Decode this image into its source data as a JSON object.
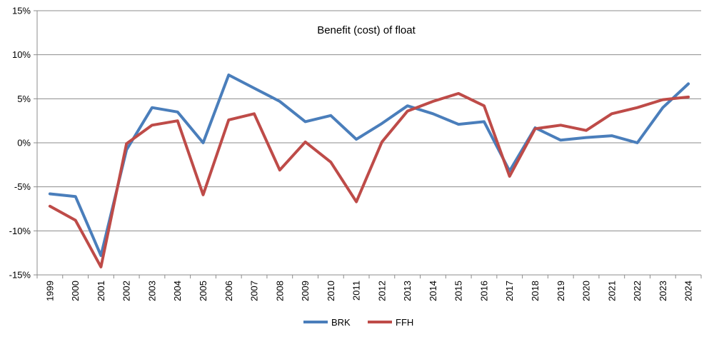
{
  "chart_data": {
    "type": "line",
    "title": "Benefit (cost) of float",
    "xlabel": "",
    "ylabel": "",
    "categories": [
      "1999",
      "2000",
      "2001",
      "2002",
      "2003",
      "2004",
      "2005",
      "2006",
      "2007",
      "2008",
      "2009",
      "2010",
      "2011",
      "2012",
      "2013",
      "2014",
      "2015",
      "2016",
      "2017",
      "2018",
      "2019",
      "2020",
      "2021",
      "2022",
      "2023",
      "2024"
    ],
    "ylim": [
      -15,
      15
    ],
    "yticks": [
      -15,
      -10,
      -5,
      0,
      5,
      10,
      15
    ],
    "ytick_labels": [
      "-15%",
      "-10%",
      "-5%",
      "0%",
      "5%",
      "10%",
      "15%"
    ],
    "grid": "horizontal",
    "legend_position": "bottom",
    "series": [
      {
        "name": "BRK",
        "color": "#4A7EBB",
        "values": [
          -5.8,
          -6.1,
          -12.8,
          -0.8,
          4.0,
          3.5,
          0.0,
          7.7,
          6.2,
          4.7,
          2.4,
          3.1,
          0.4,
          2.2,
          4.2,
          3.3,
          2.1,
          2.4,
          -3.2,
          1.7,
          0.3,
          0.6,
          0.8,
          0.0,
          4.0,
          6.7
        ]
      },
      {
        "name": "FFH",
        "color": "#BE4B48",
        "values": [
          -7.2,
          -8.8,
          -14.1,
          -0.1,
          2.0,
          2.5,
          -5.9,
          2.6,
          3.3,
          -3.1,
          0.1,
          -2.2,
          -6.7,
          0.1,
          3.6,
          4.7,
          5.6,
          4.2,
          -3.8,
          1.6,
          2.0,
          1.4,
          3.3,
          4.0,
          4.9,
          5.2
        ]
      }
    ]
  }
}
